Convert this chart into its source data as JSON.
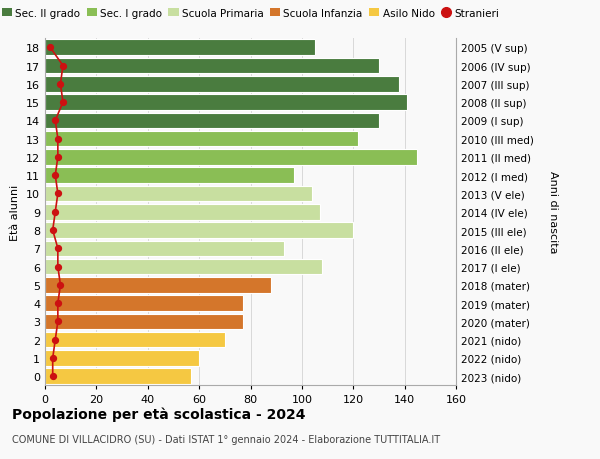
{
  "ages": [
    0,
    1,
    2,
    3,
    4,
    5,
    6,
    7,
    8,
    9,
    10,
    11,
    12,
    13,
    14,
    15,
    16,
    17,
    18
  ],
  "right_labels_bottom_to_top": [
    "2023 (nido)",
    "2022 (nido)",
    "2021 (nido)",
    "2020 (mater)",
    "2019 (mater)",
    "2018 (mater)",
    "2017 (I ele)",
    "2016 (II ele)",
    "2015 (III ele)",
    "2014 (IV ele)",
    "2013 (V ele)",
    "2012 (I med)",
    "2011 (II med)",
    "2010 (III med)",
    "2009 (I sup)",
    "2008 (II sup)",
    "2007 (III sup)",
    "2006 (IV sup)",
    "2005 (V sup)"
  ],
  "bar_values": [
    57,
    60,
    70,
    77,
    77,
    88,
    108,
    93,
    120,
    107,
    104,
    97,
    145,
    122,
    130,
    141,
    138,
    130,
    105
  ],
  "bar_colors": [
    "#f5c842",
    "#f5c842",
    "#f5c842",
    "#d4762b",
    "#d4762b",
    "#d4762b",
    "#c8dfa0",
    "#c8dfa0",
    "#c8dfa0",
    "#c8dfa0",
    "#c8dfa0",
    "#8abe55",
    "#8abe55",
    "#8abe55",
    "#4a7c3f",
    "#4a7c3f",
    "#4a7c3f",
    "#4a7c3f",
    "#4a7c3f"
  ],
  "stranieri_values": [
    3,
    3,
    4,
    5,
    5,
    6,
    5,
    5,
    3,
    4,
    5,
    4,
    5,
    5,
    4,
    7,
    6,
    7,
    2
  ],
  "legend_labels": [
    "Sec. II grado",
    "Sec. I grado",
    "Scuola Primaria",
    "Scuola Infanzia",
    "Asilo Nido",
    "Stranieri"
  ],
  "legend_colors": [
    "#4a7c3f",
    "#8abe55",
    "#c8dfa0",
    "#d4762b",
    "#f5c842",
    "#cc1111"
  ],
  "ylabel_left": "Età alunni",
  "ylabel_right": "Anni di nascita",
  "title": "Popolazione per età scolastica - 2024",
  "subtitle": "COMUNE DI VILLACIDRO (SU) - Dati ISTAT 1° gennaio 2024 - Elaborazione TUTTITALIA.IT",
  "xlim": [
    0,
    160
  ],
  "xticks": [
    0,
    20,
    40,
    60,
    80,
    100,
    120,
    140,
    160
  ],
  "bg_color": "#f9f9f9",
  "grid_color": "#d8d8d8"
}
